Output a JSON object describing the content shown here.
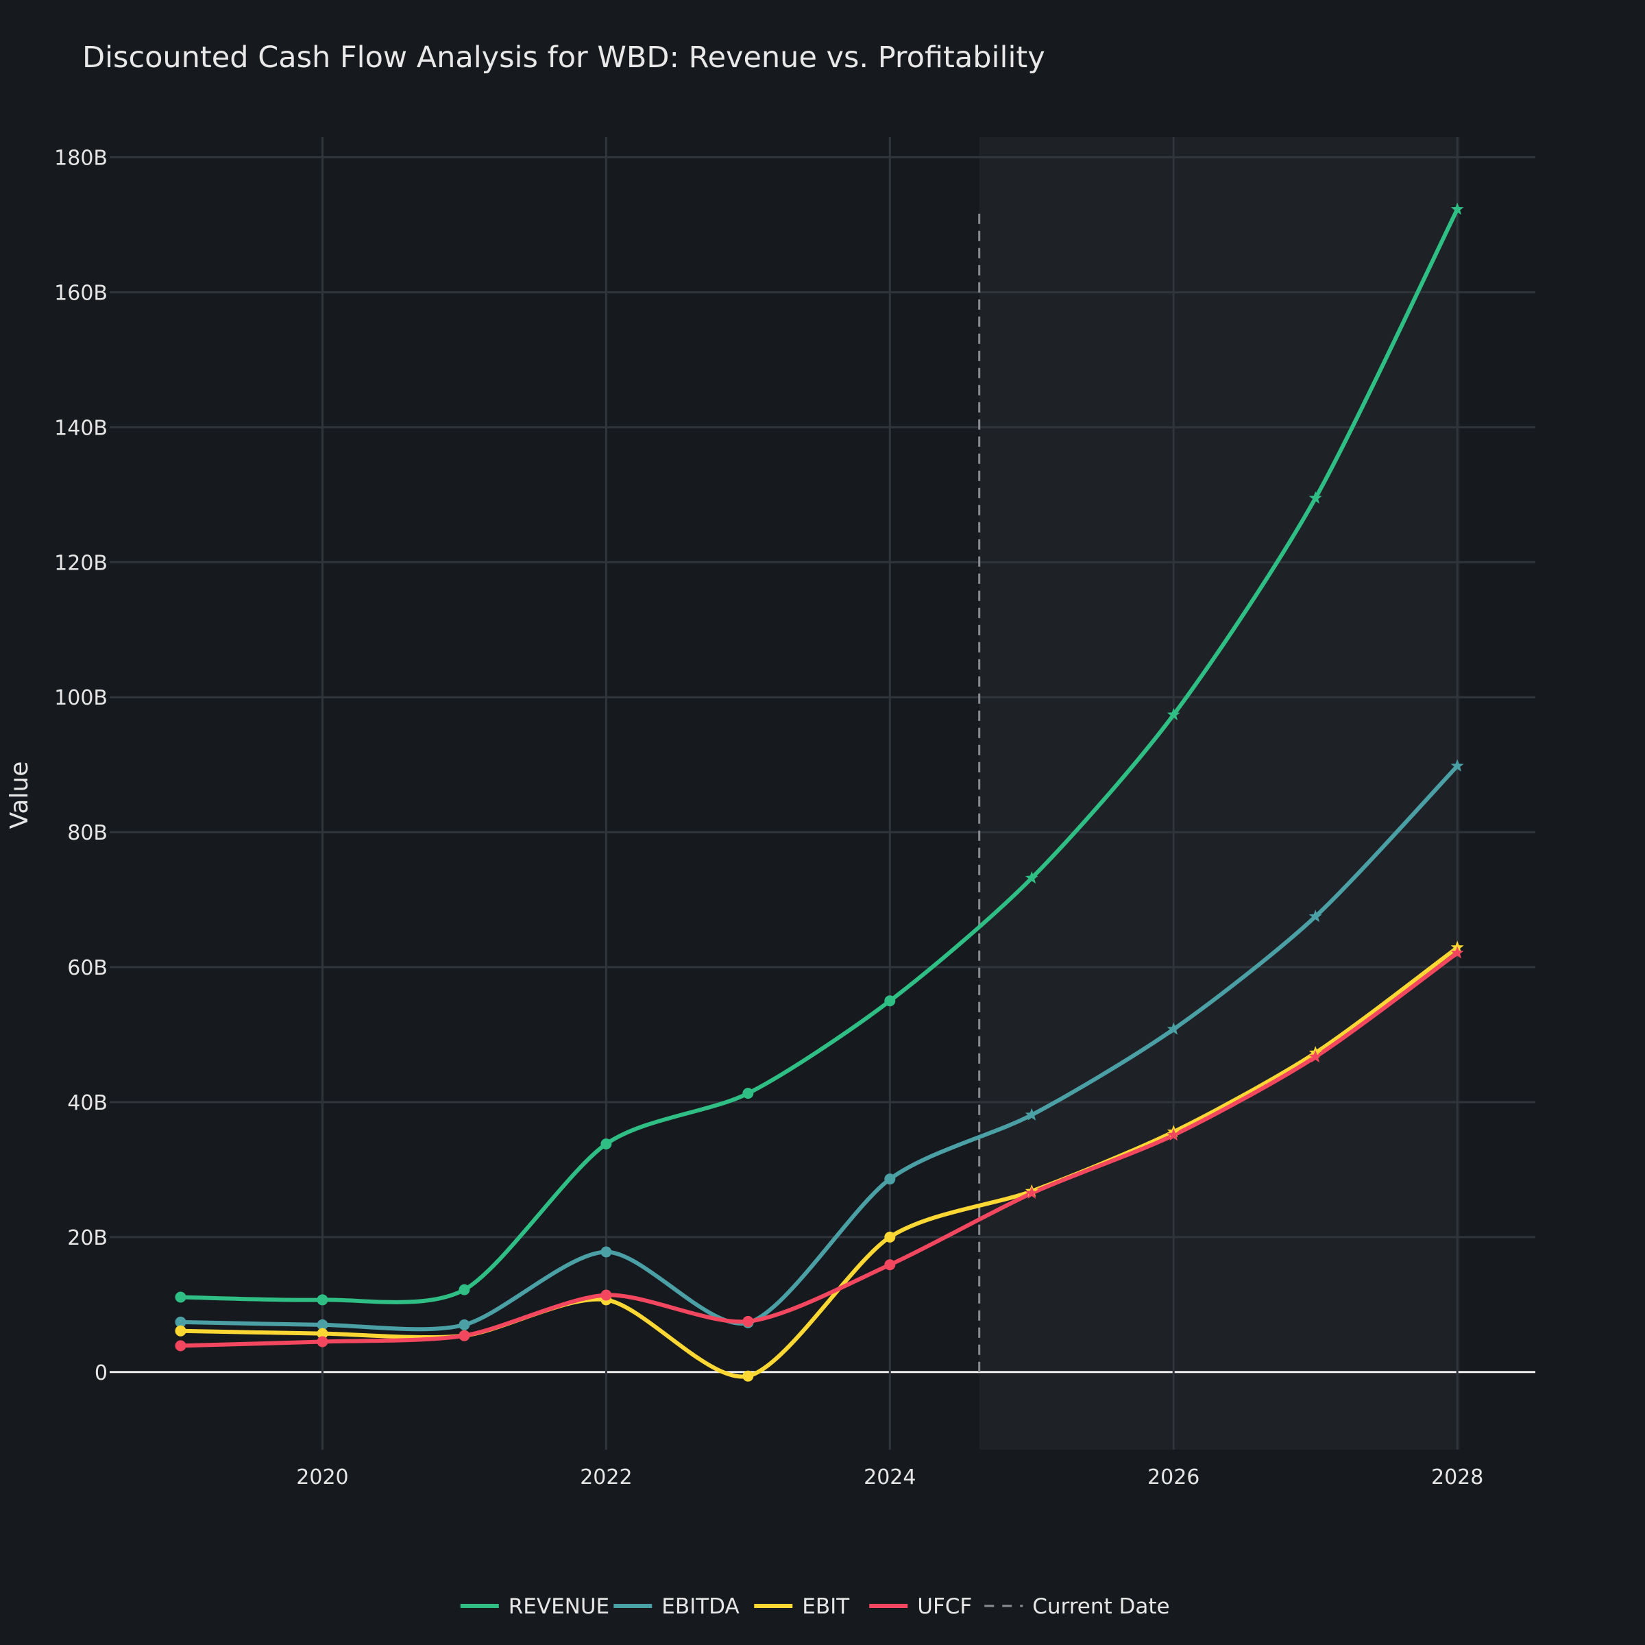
{
  "chart_data": {
    "type": "line",
    "title": "Discounted Cash Flow Analysis for WBD: Revenue vs. Profitability",
    "xlabel": "",
    "ylabel": "Value",
    "xlim": [
      2018.5,
      2028.55
    ],
    "ylim": [
      -11.5,
      183
    ],
    "x_ticks": [
      2020,
      2022,
      2024,
      2026,
      2028
    ],
    "x_tick_labels": [
      "2020",
      "2022",
      "2024",
      "2026",
      "2028"
    ],
    "y_ticks": [
      0,
      20,
      40,
      60,
      80,
      100,
      120,
      140,
      160,
      180
    ],
    "y_tick_labels": [
      "0",
      "20B",
      "40B",
      "60B",
      "80B",
      "100B",
      "120B",
      "140B",
      "160B",
      "180B"
    ],
    "grid": true,
    "current_date": 2024.63,
    "forecast_region": [
      2024.63,
      2028
    ],
    "legend_position": "bottom-center",
    "series": [
      {
        "name": "REVENUE",
        "color": "#2fbe84",
        "historical": {
          "x": [
            2019,
            2020,
            2021,
            2022,
            2023,
            2024
          ],
          "values": [
            11.1,
            10.7,
            12.2,
            33.8,
            41.3,
            55.0
          ]
        },
        "forecast": {
          "x": [
            2025,
            2026,
            2027,
            2028
          ],
          "values": [
            73.2,
            97.4,
            129.5,
            172.3
          ]
        }
      },
      {
        "name": "EBITDA",
        "color": "#4aa0a5",
        "historical": {
          "x": [
            2019,
            2020,
            2021,
            2022,
            2023,
            2024
          ],
          "values": [
            7.4,
            7.0,
            7.0,
            17.8,
            7.3,
            28.6
          ]
        },
        "forecast": {
          "x": [
            2025,
            2026,
            2027,
            2028
          ],
          "values": [
            38.1,
            50.8,
            67.5,
            89.8
          ]
        }
      },
      {
        "name": "EBIT",
        "color": "#fdd835",
        "historical": {
          "x": [
            2019,
            2020,
            2021,
            2022,
            2023,
            2024
          ],
          "values": [
            6.1,
            5.7,
            5.4,
            10.7,
            -0.6,
            20.0
          ]
        },
        "forecast": {
          "x": [
            2025,
            2026,
            2027,
            2028
          ],
          "values": [
            26.8,
            35.6,
            47.3,
            62.9
          ]
        }
      },
      {
        "name": "UFCF",
        "color": "#f2475e",
        "historical": {
          "x": [
            2019,
            2020,
            2021,
            2022,
            2023,
            2024
          ],
          "values": [
            3.9,
            4.5,
            5.4,
            11.4,
            7.5,
            15.9
          ]
        },
        "forecast": {
          "x": [
            2025,
            2026,
            2027,
            2028
          ],
          "values": [
            26.5,
            35.1,
            46.7,
            62.1
          ]
        }
      }
    ],
    "legend": [
      {
        "label": "REVENUE",
        "color": "#2fbe84",
        "style": "solid"
      },
      {
        "label": "EBITDA",
        "color": "#4aa0a5",
        "style": "solid"
      },
      {
        "label": "EBIT",
        "color": "#fdd835",
        "style": "solid"
      },
      {
        "label": "UFCF",
        "color": "#f2475e",
        "style": "solid"
      },
      {
        "label": "Current Date",
        "color": "#8a8d92",
        "style": "dashed"
      }
    ]
  }
}
